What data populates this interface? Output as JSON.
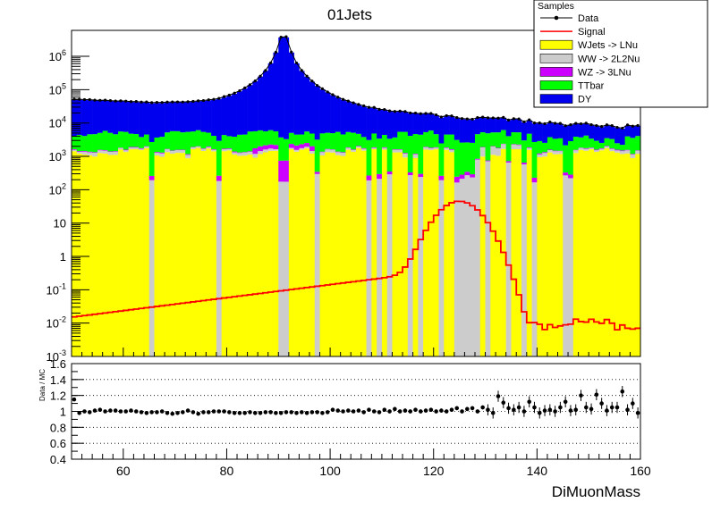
{
  "chart_data": [
    {
      "type": "area",
      "title": "01Jets",
      "xlabel": "",
      "ylabel": "",
      "yscale": "log",
      "xlim": [
        50,
        160
      ],
      "ylim": [
        0.001,
        6000000
      ],
      "bins": {
        "start": 50,
        "width": 1,
        "count": 110
      },
      "y_tick_labels": [
        "10^-3",
        "10^-2",
        "10^-1",
        "1",
        "10",
        "10^2",
        "10^3",
        "10^4",
        "10^5",
        "10^6"
      ],
      "legend": {
        "title": "Samples",
        "position": "top-right",
        "entries": [
          {
            "label": "Data",
            "kind": "marker",
            "color": "#000000"
          },
          {
            "label": "Signal",
            "kind": "line",
            "color": "#ff0000"
          },
          {
            "label": "WJets -> LNu",
            "kind": "fill",
            "color": "#ffff00"
          },
          {
            "label": "WW -> 2L2Nu",
            "kind": "fill",
            "color": "#cccccc"
          },
          {
            "label": "WZ -> 3LNu",
            "kind": "fill",
            "color": "#cc00ff"
          },
          {
            "label": "TTbar",
            "kind": "fill",
            "color": "#00ff00"
          },
          {
            "label": "DY",
            "kind": "fill",
            "color": "#0000ee"
          }
        ]
      },
      "stack_order": [
        "WJets -> LNu",
        "WW -> 2L2Nu",
        "WZ -> 3LNu",
        "TTbar",
        "DY"
      ],
      "series_model": {
        "WJets -> LNu": {
          "level_approx": 1100,
          "empty_bins": [
            65,
            78,
            90,
            91,
            97,
            107,
            109,
            111,
            115,
            117,
            121,
            124,
            125,
            126,
            127,
            128,
            130,
            134,
            137,
            139,
            145,
            146
          ]
        },
        "WW -> 2L2Nu": {
          "level_approx": 180,
          "peak_x": 132
        },
        "WZ -> 3LNu": {
          "peak_x": 91,
          "level_approx": 250
        },
        "TTbar": {
          "level_approx": 2600
        },
        "DY": {
          "peak_x": 91,
          "peak_value": 4500000,
          "value_at_50": 45000,
          "value_at_160": 3500
        }
      },
      "signal": {
        "peak_x": 125,
        "peak_value": 45,
        "value_at_50": 0.015,
        "value_at_160": 0.008
      }
    },
    {
      "type": "scatter",
      "title": "",
      "xlabel": "DiMuonMass",
      "ylabel": "Data / MC",
      "xlim": [
        50,
        160
      ],
      "ylim": [
        0.4,
        1.6
      ],
      "x_ticks": [
        60,
        80,
        100,
        120,
        140,
        160
      ],
      "y_ticks": [
        0.4,
        0.6,
        0.8,
        1,
        1.2,
        1.4,
        1.6
      ],
      "grid": "horizontal dotted at 1.2, 1.4, 0.8, 0.6",
      "ratio_points": [
        {
          "x": 50.5,
          "y": 1.15
        },
        {
          "x": 51.5,
          "y": 0.98
        },
        {
          "x": 52.5,
          "y": 1.0
        },
        {
          "x": 53.5,
          "y": 0.99
        },
        {
          "x": 54.5,
          "y": 1.01
        },
        {
          "x": 55.5,
          "y": 1.02
        },
        {
          "x": 56.5,
          "y": 1.0
        },
        {
          "x": 57.5,
          "y": 1.01
        },
        {
          "x": 58.5,
          "y": 1.01
        },
        {
          "x": 59.5,
          "y": 1.0
        },
        {
          "x": 60.5,
          "y": 1.0
        },
        {
          "x": 61.5,
          "y": 1.01
        },
        {
          "x": 62.5,
          "y": 1.0
        },
        {
          "x": 63.5,
          "y": 0.99
        },
        {
          "x": 64.5,
          "y": 0.98
        },
        {
          "x": 65.5,
          "y": 0.99
        },
        {
          "x": 66.5,
          "y": 0.99
        },
        {
          "x": 67.5,
          "y": 1.0
        },
        {
          "x": 68.5,
          "y": 0.98
        },
        {
          "x": 69.5,
          "y": 0.97
        },
        {
          "x": 70.5,
          "y": 0.98
        },
        {
          "x": 71.5,
          "y": 0.99
        },
        {
          "x": 72.5,
          "y": 1.01
        },
        {
          "x": 73.5,
          "y": 0.99
        },
        {
          "x": 74.5,
          "y": 0.97
        },
        {
          "x": 75.5,
          "y": 0.99
        },
        {
          "x": 76.5,
          "y": 0.99
        },
        {
          "x": 77.5,
          "y": 1.0
        },
        {
          "x": 78.5,
          "y": 1.0
        },
        {
          "x": 79.5,
          "y": 1.0
        },
        {
          "x": 80.5,
          "y": 0.99
        },
        {
          "x": 81.5,
          "y": 0.98
        },
        {
          "x": 82.5,
          "y": 0.98
        },
        {
          "x": 83.5,
          "y": 0.98
        },
        {
          "x": 84.5,
          "y": 0.99
        },
        {
          "x": 85.5,
          "y": 0.98
        },
        {
          "x": 86.5,
          "y": 0.98
        },
        {
          "x": 87.5,
          "y": 0.99
        },
        {
          "x": 88.5,
          "y": 0.99
        },
        {
          "x": 89.5,
          "y": 0.98
        },
        {
          "x": 90.5,
          "y": 0.98
        },
        {
          "x": 91.5,
          "y": 0.99
        },
        {
          "x": 92.5,
          "y": 0.99
        },
        {
          "x": 93.5,
          "y": 0.98
        },
        {
          "x": 94.5,
          "y": 0.99
        },
        {
          "x": 95.5,
          "y": 0.98
        },
        {
          "x": 96.5,
          "y": 0.99
        },
        {
          "x": 97.5,
          "y": 0.99
        },
        {
          "x": 98.5,
          "y": 0.98
        },
        {
          "x": 99.5,
          "y": 0.99
        },
        {
          "x": 100.5,
          "y": 1.02
        },
        {
          "x": 101.5,
          "y": 1.01
        },
        {
          "x": 102.5,
          "y": 1.0
        },
        {
          "x": 103.5,
          "y": 1.01
        },
        {
          "x": 104.5,
          "y": 1.0
        },
        {
          "x": 105.5,
          "y": 1.01
        },
        {
          "x": 106.5,
          "y": 0.99
        },
        {
          "x": 107.5,
          "y": 1.02
        },
        {
          "x": 108.5,
          "y": 1.0
        },
        {
          "x": 109.5,
          "y": 0.99
        },
        {
          "x": 110.5,
          "y": 1.02
        },
        {
          "x": 111.5,
          "y": 1.0
        },
        {
          "x": 112.5,
          "y": 1.03
        },
        {
          "x": 113.5,
          "y": 1.0
        },
        {
          "x": 114.5,
          "y": 1.01
        },
        {
          "x": 115.5,
          "y": 1.0
        },
        {
          "x": 116.5,
          "y": 1.02
        },
        {
          "x": 117.5,
          "y": 1.0
        },
        {
          "x": 118.5,
          "y": 1.01
        },
        {
          "x": 119.5,
          "y": 1.02
        },
        {
          "x": 120.5,
          "y": 1.0
        },
        {
          "x": 121.5,
          "y": 1.01
        },
        {
          "x": 122.5,
          "y": 1.0
        },
        {
          "x": 123.5,
          "y": 1.02
        },
        {
          "x": 124.5,
          "y": 1.04
        },
        {
          "x": 125.5,
          "y": 1.0
        },
        {
          "x": 126.5,
          "y": 1.03
        },
        {
          "x": 127.5,
          "y": 1.04
        },
        {
          "x": 128.5,
          "y": 1.0
        },
        {
          "x": 129.5,
          "y": 1.05
        },
        {
          "x": 130.5,
          "y": 1.02
        },
        {
          "x": 131.5,
          "y": 0.98
        },
        {
          "x": 132.5,
          "y": 1.19
        },
        {
          "x": 133.5,
          "y": 1.11
        },
        {
          "x": 134.5,
          "y": 1.04
        },
        {
          "x": 135.5,
          "y": 1.02
        },
        {
          "x": 136.5,
          "y": 1.05
        },
        {
          "x": 137.5,
          "y": 1.0
        },
        {
          "x": 138.5,
          "y": 1.12
        },
        {
          "x": 139.5,
          "y": 1.05
        },
        {
          "x": 140.5,
          "y": 0.98
        },
        {
          "x": 141.5,
          "y": 1.01
        },
        {
          "x": 142.5,
          "y": 1.02
        },
        {
          "x": 143.5,
          "y": 1.0
        },
        {
          "x": 144.5,
          "y": 1.05
        },
        {
          "x": 145.5,
          "y": 1.12
        },
        {
          "x": 146.5,
          "y": 1.01
        },
        {
          "x": 147.5,
          "y": 1.02
        },
        {
          "x": 148.5,
          "y": 1.2
        },
        {
          "x": 149.5,
          "y": 1.05
        },
        {
          "x": 150.5,
          "y": 1.03
        },
        {
          "x": 151.5,
          "y": 1.21
        },
        {
          "x": 152.5,
          "y": 1.1
        },
        {
          "x": 153.5,
          "y": 1.01
        },
        {
          "x": 154.5,
          "y": 1.05
        },
        {
          "x": 155.5,
          "y": 1.05
        },
        {
          "x": 156.5,
          "y": 1.25
        },
        {
          "x": 157.5,
          "y": 1.02
        },
        {
          "x": 158.5,
          "y": 1.1
        },
        {
          "x": 159.5,
          "y": 0.98
        }
      ]
    }
  ]
}
